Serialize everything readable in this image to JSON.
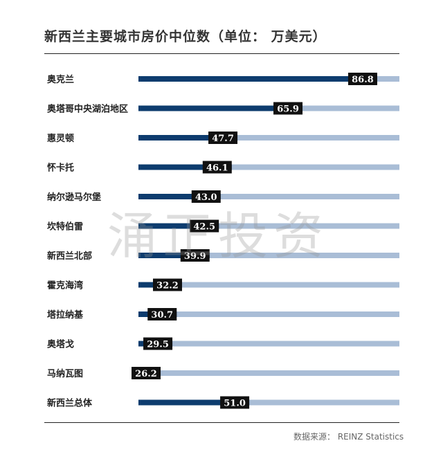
{
  "title": "新西兰主要城市房价中位数（单位： 万美元）",
  "source": "数据来源： REINZ Statistics",
  "watermark": "涌正投资",
  "colors": {
    "bar": "#0d3c6e",
    "track": "#a9bdd6",
    "label_bg": "#111111",
    "label_text": "#ffffff"
  },
  "chart_data": {
    "type": "bar",
    "orientation": "horizontal",
    "title": "新西兰主要城市房价中位数（单位： 万美元）",
    "categories": [
      "奥克兰",
      "奥塔哥中央湖泊地区",
      "惠灵顿",
      "怀卡托",
      "纳尔逊马尔堡",
      "坎特伯雷",
      "新西兰北部",
      "霍克海湾",
      "塔拉纳基",
      "奥塔戈",
      "马纳瓦图",
      "新西兰总体"
    ],
    "values": [
      86.8,
      65.9,
      47.7,
      46.1,
      43.0,
      42.5,
      39.9,
      32.2,
      30.7,
      29.5,
      26.2,
      51.0
    ],
    "value_labels": [
      "86.8",
      "65.9",
      "47.7",
      "46.1",
      "43.0",
      "42.5",
      "39.9",
      "32.2",
      "30.7",
      "29.5",
      "26.2",
      "51.0"
    ],
    "xlim": [
      20,
      93
    ],
    "grid": false,
    "legend": "none"
  }
}
